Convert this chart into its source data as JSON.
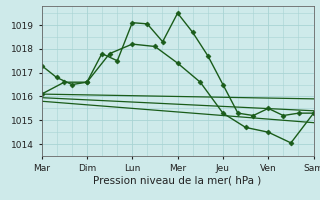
{
  "background_color": "#ceeaea",
  "grid_color": "#a8d4d4",
  "line_color": "#1a5c1a",
  "xlabel": "Pression niveau de la mer( hPa )",
  "xlim": [
    0,
    6
  ],
  "ylim": [
    1013.5,
    1019.8
  ],
  "yticks": [
    1014,
    1015,
    1016,
    1017,
    1018,
    1019
  ],
  "xtick_labels": [
    "Mar",
    "Dim",
    "Lun",
    "Mer",
    "Jeu",
    "Ven",
    "Sam"
  ],
  "lines": [
    {
      "x": [
        0,
        0.33,
        0.67,
        1.0,
        1.33,
        1.67,
        2.0,
        2.33,
        2.67,
        3.0,
        3.33,
        3.67,
        4.0,
        4.33,
        4.67,
        5.0,
        5.33,
        5.67,
        6.0
      ],
      "y": [
        1017.3,
        1016.8,
        1016.5,
        1016.6,
        1017.8,
        1017.5,
        1019.1,
        1019.05,
        1018.3,
        1019.5,
        1018.7,
        1017.7,
        1016.5,
        1015.3,
        1015.2,
        1015.5,
        1015.2,
        1015.3,
        1015.3
      ]
    },
    {
      "x": [
        0,
        0.5,
        1.0,
        1.5,
        2.0,
        2.5,
        3.0,
        3.5,
        4.0,
        4.5,
        5.0,
        5.5,
        6.0
      ],
      "y": [
        1016.1,
        1016.6,
        1016.6,
        1017.8,
        1018.2,
        1018.1,
        1017.4,
        1016.6,
        1015.3,
        1014.7,
        1014.5,
        1014.05,
        1015.3
      ]
    },
    {
      "x": [
        0,
        6.0
      ],
      "y": [
        1016.1,
        1015.9
      ],
      "no_marker": true
    },
    {
      "x": [
        0,
        6.0
      ],
      "y": [
        1015.95,
        1015.4
      ],
      "no_marker": true
    },
    {
      "x": [
        0,
        6.0
      ],
      "y": [
        1015.8,
        1014.9
      ],
      "no_marker": true
    }
  ]
}
